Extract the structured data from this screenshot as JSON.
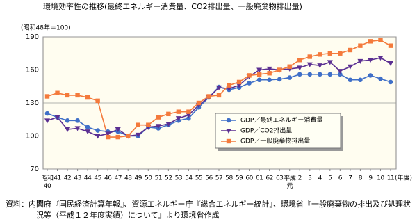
{
  "chart_data": {
    "type": "line",
    "title": "環境効率性の推移(最終エネルギー消費量、CO2排出量、一般廃棄物排出量)",
    "y_label": "(昭和48年＝100)",
    "x_label": "(年度)",
    "categories": [
      "昭和40",
      "41",
      "42",
      "43",
      "44",
      "45",
      "46",
      "47",
      "48",
      "49",
      "50",
      "51",
      "52",
      "53",
      "54",
      "55",
      "56",
      "57",
      "58",
      "59",
      "60",
      "61",
      "62",
      "63",
      "平成元",
      "2",
      "3",
      "4",
      "5",
      "6",
      "7",
      "8",
      "9",
      "10",
      "11"
    ],
    "series": [
      {
        "name": "GDP／最終エネルギー消費量",
        "color": "#3f6fc8",
        "marker": "circle",
        "values": [
          120.5,
          117,
          114,
          114,
          108,
          105,
          104,
          104,
          100,
          100,
          108,
          107,
          110,
          114,
          116,
          126,
          135,
          144.5,
          142,
          144,
          148,
          151,
          151,
          151.5,
          153,
          156,
          156,
          156,
          156,
          156,
          151,
          151,
          155,
          152,
          149
        ]
      },
      {
        "name": "GDP／CO2排出量",
        "color": "#5b2f92",
        "marker": "triangle",
        "values": [
          114,
          117,
          106,
          107,
          104,
          100,
          102,
          106,
          100,
          101,
          108,
          109,
          111,
          116,
          119,
          128,
          135,
          144,
          143,
          146,
          154,
          160,
          161,
          160,
          161,
          162,
          165,
          164,
          167,
          159,
          163,
          168,
          169,
          171,
          166
        ]
      },
      {
        "name": "GDP／一般廃棄物排出量",
        "color": "#f47a3c",
        "marker": "square",
        "values": [
          136,
          139,
          137,
          137,
          135,
          132,
          99,
          99,
          100,
          110,
          110,
          117,
          120,
          122,
          122,
          130,
          136,
          137,
          146,
          149,
          155,
          156,
          157,
          160,
          163,
          169,
          172,
          174,
          175,
          175,
          178,
          182,
          186,
          187,
          182
        ]
      }
    ],
    "ylim": [
      70,
      190
    ],
    "yticks": [
      70,
      100,
      130,
      160,
      190
    ],
    "grid": true,
    "legend": "center-right",
    "source": "資料：内閣府『国民経済計算年報』、資源エネルギー庁『総合エネルギー統計』、環境省『一般廃棄物の排出及び処理状況等（平成１２年度実績）について』より環境省作成"
  }
}
